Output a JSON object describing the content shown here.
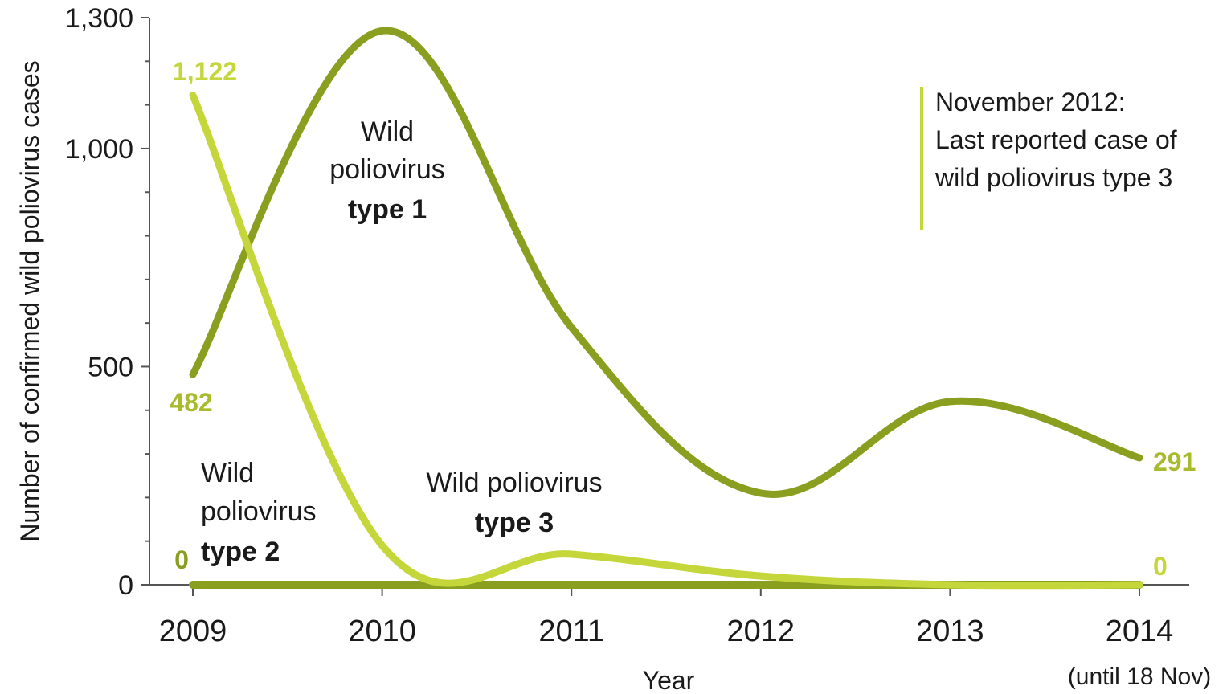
{
  "chart_data": {
    "type": "line",
    "x": [
      "2009",
      "2010",
      "2011",
      "2012",
      "2013",
      "2014"
    ],
    "x_tick_labels": [
      "2009",
      "2010",
      "2011",
      "2012",
      "2013",
      "2014"
    ],
    "x_tick_sublabel": "(until 18 Nov)",
    "xlabel": "Year",
    "ylabel": "Number of confirmed wild poliovirus cases",
    "ylim": [
      0,
      1300
    ],
    "y_ticks": [
      0,
      500,
      1000,
      1300
    ],
    "y_tick_labels": [
      "0",
      "500",
      "1,000",
      "1,300"
    ],
    "grid": false,
    "series": [
      {
        "key": "type1",
        "values": [
          482,
          1270,
          590,
          210,
          420,
          291
        ],
        "label_lines": [
          "Wild",
          "poliovirus"
        ],
        "label_bold": "type 1",
        "color": "#8a9f1f"
      },
      {
        "key": "type2",
        "values": [
          0,
          0,
          0,
          0,
          0,
          0
        ],
        "label_lines": [
          "Wild",
          "poliovirus"
        ],
        "label_bold": "type 2",
        "color": "#8a9f1f"
      },
      {
        "key": "type3",
        "values": [
          1122,
          90,
          70,
          20,
          0,
          0
        ],
        "label_lines": [
          "Wild poliovirus"
        ],
        "label_bold": "type 3",
        "color": "#c5d63a"
      }
    ],
    "data_labels": [
      {
        "text": "1,122",
        "color": "#c5d63a"
      },
      {
        "text": "482",
        "color": "#a8bb2c"
      },
      {
        "text": "0",
        "color": "#8a9f1f"
      },
      {
        "text": "291",
        "color": "#a8bb2c"
      },
      {
        "text": "0",
        "color": "#c5d63a"
      }
    ],
    "annotation": {
      "lines": [
        "November 2012:",
        "Last reported case of",
        "wild poliovirus type 3"
      ],
      "color": "#c5d63a"
    }
  }
}
